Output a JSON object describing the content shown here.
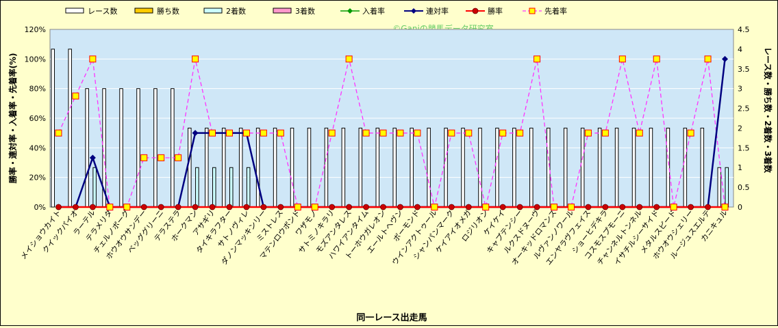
{
  "chart_data": {
    "type": "bar",
    "watermark": "©Ganiの競馬データ研究室",
    "xlabel": "同一レース出走馬",
    "ylabel_left": "勝率・連対率・入着率・先着率(%)",
    "ylabel_right": "レース数・勝ち数・2着数・3着数",
    "ylim_left": [
      0,
      120
    ],
    "ylim_right": [
      0,
      4.5
    ],
    "y_ticks_left": [
      "0%",
      "20%",
      "40%",
      "60%",
      "80%",
      "100%",
      "120%"
    ],
    "y_ticks_right": [
      "0",
      "0.5",
      "1",
      "1.5",
      "2",
      "2.5",
      "3",
      "3.5",
      "4",
      "4.5"
    ],
    "grid": true,
    "legend_position": "top",
    "legend": [
      {
        "key": "races",
        "label": "レース数"
      },
      {
        "key": "wins",
        "label": "勝ち数"
      },
      {
        "key": "second",
        "label": "2着数"
      },
      {
        "key": "third",
        "label": "3着数"
      },
      {
        "key": "place_rate",
        "label": "入着率"
      },
      {
        "key": "rentai_rate",
        "label": "連対率"
      },
      {
        "key": "win_rate",
        "label": "勝率"
      },
      {
        "key": "senchaku_rate",
        "label": "先着率"
      }
    ],
    "categories": [
      "メイショウカイト",
      "クイックパイオ",
      "ラーテル",
      "テラメリタ",
      "チェルノボーグ",
      "ホウオウサンデー",
      "ベッググリーニ",
      "テラステラ",
      "ホークマン",
      "アサギリ",
      "タイキラフター",
      "サトノヴィレ",
      "ダノンマッキンリー",
      "ミストレス",
      "マテンロウボンド",
      "ワザモノ",
      "サトミノキラリ",
      "モズアンタレス",
      "ハワイアンタイム",
      "トーホウガレオン",
      "エールトヘヴン",
      "ボーモンド",
      "ウインアクトゥール",
      "シャンパンマーク",
      "ケイアイオメガ",
      "ロジリオン",
      "ケイケイ",
      "キャプテンシー",
      "ルクスドヌーヴ",
      "オーキッドロマンス",
      "ルヴァンノワール",
      "エンヤラヴフェイス",
      "ショーヒデキラ",
      "コスモスプモーニ",
      "チャンネルトンネル",
      "イサチルシーサイド",
      "メタルスピード",
      "ホウオウシェリー",
      "ルージュスエルテ",
      "カニキュル"
    ],
    "series": [
      {
        "key": "races",
        "name": "レース数",
        "color": "#ffffff",
        "values": [
          4,
          4,
          3,
          3,
          3,
          3,
          3,
          3,
          2,
          2,
          2,
          2,
          2,
          2,
          2,
          2,
          2,
          2,
          2,
          2,
          2,
          2,
          2,
          2,
          2,
          2,
          2,
          2,
          2,
          2,
          2,
          2,
          2,
          2,
          2,
          2,
          2,
          2,
          2,
          1
        ]
      },
      {
        "key": "wins",
        "name": "勝ち数",
        "color": "#ffcc00",
        "values": [
          0,
          0,
          0,
          0,
          0,
          0,
          0,
          0,
          0,
          0,
          0,
          0,
          0,
          0,
          0,
          0,
          0,
          0,
          0,
          0,
          0,
          0,
          0,
          0,
          0,
          0,
          0,
          0,
          0,
          0,
          0,
          0,
          0,
          0,
          0,
          0,
          0,
          0,
          0,
          0
        ]
      },
      {
        "key": "second",
        "name": "2着数",
        "color": "#ccffff",
        "values": [
          0,
          0,
          1,
          0,
          0,
          0,
          0,
          0,
          1,
          1,
          1,
          1,
          0,
          0,
          0,
          0,
          0,
          0,
          0,
          0,
          0,
          0,
          0,
          0,
          0,
          0,
          0,
          0,
          0,
          0,
          0,
          0,
          0,
          0,
          0,
          0,
          0,
          0,
          0,
          1
        ]
      },
      {
        "key": "third",
        "name": "3着数",
        "color": "#ff99cc",
        "values": [
          0,
          0,
          0,
          0,
          0,
          0,
          0,
          0,
          0,
          0,
          0,
          0,
          0,
          0,
          0,
          0,
          0,
          0,
          0,
          0,
          0,
          0,
          0,
          0,
          0,
          0,
          0,
          0,
          0,
          0,
          0,
          0,
          0,
          0,
          0,
          0,
          0,
          0,
          0,
          0
        ]
      },
      {
        "key": "place_rate",
        "name": "入着率",
        "color": "#009900",
        "values": [
          0,
          0,
          33.3,
          0,
          0,
          0,
          0,
          0,
          50,
          50,
          50,
          50,
          0,
          0,
          0,
          0,
          0,
          0,
          0,
          0,
          0,
          0,
          0,
          0,
          0,
          0,
          0,
          0,
          0,
          0,
          0,
          0,
          0,
          0,
          0,
          0,
          0,
          0,
          0,
          100
        ]
      },
      {
        "key": "rentai_rate",
        "name": "連対率",
        "color": "#000080",
        "values": [
          0,
          0,
          33.3,
          0,
          0,
          0,
          0,
          0,
          50,
          50,
          50,
          50,
          0,
          0,
          0,
          0,
          0,
          0,
          0,
          0,
          0,
          0,
          0,
          0,
          0,
          0,
          0,
          0,
          0,
          0,
          0,
          0,
          0,
          0,
          0,
          0,
          0,
          0,
          0,
          100
        ]
      },
      {
        "key": "win_rate",
        "name": "勝率",
        "color": "#ff0000",
        "values": [
          0,
          0,
          0,
          0,
          0,
          0,
          0,
          0,
          0,
          0,
          0,
          0,
          0,
          0,
          0,
          0,
          0,
          0,
          0,
          0,
          0,
          0,
          0,
          0,
          0,
          0,
          0,
          0,
          0,
          0,
          0,
          0,
          0,
          0,
          0,
          0,
          0,
          0,
          0,
          0
        ]
      },
      {
        "key": "senchaku_rate",
        "name": "先着率",
        "color": "#ff33ff",
        "values": [
          50,
          75,
          100,
          0,
          0,
          33.3,
          33.3,
          33.3,
          100,
          50,
          50,
          50,
          50,
          50,
          0,
          0,
          50,
          100,
          50,
          50,
          50,
          50,
          0,
          50,
          50,
          0,
          50,
          50,
          100,
          0,
          0,
          50,
          50,
          100,
          50,
          100,
          0,
          50,
          100,
          0
        ]
      }
    ]
  }
}
